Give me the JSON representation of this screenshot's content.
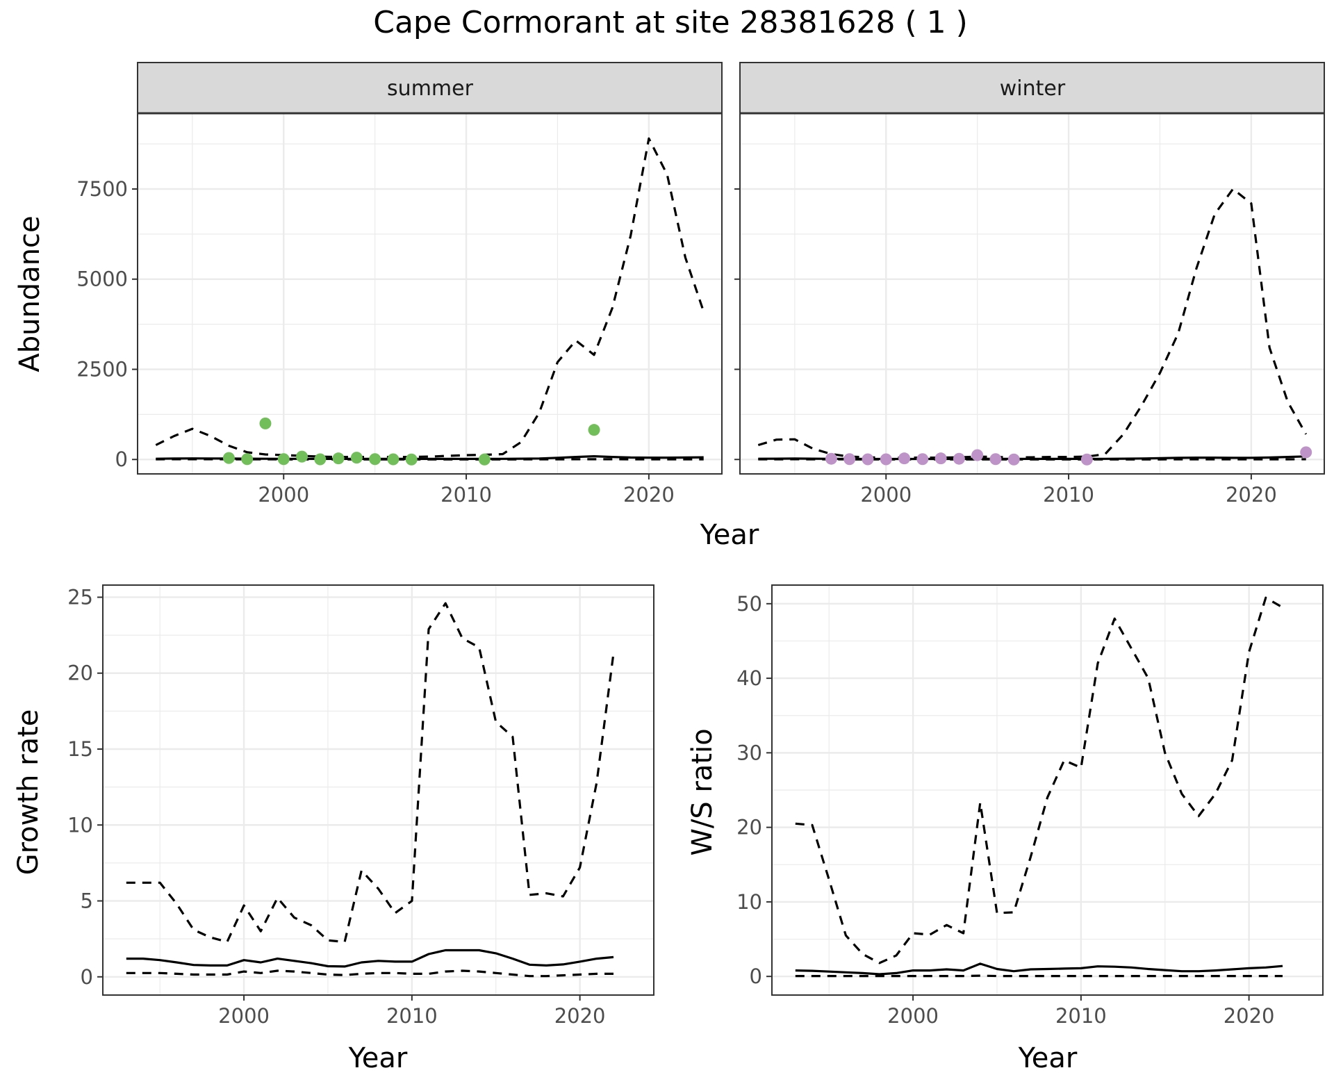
{
  "figure_title": "Cape Cormorant at site 28381628 ( 1 )",
  "colors": {
    "summer_points": "#72BE5A",
    "winter_points": "#BE94C8",
    "line": "#000000",
    "strip_fill": "#D9D9D9",
    "grid": "#EBEBEB"
  },
  "chart_data": [
    {
      "id": "summer",
      "type": "line",
      "facet_label": "summer",
      "xlabel": "Year",
      "ylabel": "Abundance",
      "xlim": [
        1992,
        2024
      ],
      "ylim": [
        -400,
        9600
      ],
      "xticks": [
        2000,
        2010,
        2020
      ],
      "yticks": [
        0,
        2500,
        5000,
        7500
      ],
      "grid": true,
      "x": [
        1993,
        1994,
        1995,
        1996,
        1997,
        1998,
        1999,
        2000,
        2001,
        2002,
        2003,
        2004,
        2005,
        2006,
        2007,
        2008,
        2009,
        2010,
        2011,
        2012,
        2013,
        2014,
        2015,
        2016,
        2017,
        2018,
        2019,
        2020,
        2021,
        2022,
        2023
      ],
      "series": [
        {
          "style": "dashed",
          "values": [
            400,
            650,
            850,
            650,
            380,
            200,
            140,
            120,
            100,
            80,
            70,
            70,
            70,
            70,
            70,
            80,
            100,
            120,
            130,
            150,
            480,
            1300,
            2700,
            3300,
            2900,
            4200,
            6200,
            8900,
            7900,
            5600,
            4100
          ]
        },
        {
          "style": "solid",
          "values": [
            20,
            25,
            30,
            28,
            25,
            22,
            20,
            18,
            18,
            17,
            17,
            16,
            16,
            16,
            16,
            16,
            16,
            16,
            16,
            18,
            22,
            28,
            45,
            70,
            90,
            70,
            55,
            50,
            50,
            55,
            60
          ]
        },
        {
          "style": "dashed",
          "values": [
            5,
            6,
            7,
            6,
            5,
            4,
            4,
            3,
            3,
            3,
            3,
            3,
            3,
            3,
            3,
            3,
            3,
            3,
            3,
            3,
            3,
            4,
            5,
            6,
            7,
            6,
            5,
            5,
            5,
            5,
            5
          ]
        }
      ],
      "points": {
        "x": [
          1997,
          1998,
          1999,
          2000,
          2001,
          2002,
          2003,
          2004,
          2005,
          2006,
          2007,
          2011,
          2017
        ],
        "y": [
          40,
          10,
          1000,
          10,
          80,
          5,
          30,
          50,
          10,
          5,
          0,
          0,
          820
        ]
      }
    },
    {
      "id": "winter",
      "type": "line",
      "facet_label": "winter",
      "xlabel": "Year",
      "ylabel": "",
      "xlim": [
        1992,
        2024
      ],
      "ylim": [
        -400,
        9600
      ],
      "xticks": [
        2000,
        2010,
        2020
      ],
      "yticks": [
        0,
        2500,
        5000,
        7500
      ],
      "grid": true,
      "x": [
        1993,
        1994,
        1995,
        1996,
        1997,
        1998,
        1999,
        2000,
        2001,
        2002,
        2003,
        2004,
        2005,
        2006,
        2007,
        2008,
        2009,
        2010,
        2011,
        2012,
        2013,
        2014,
        2015,
        2016,
        2017,
        2018,
        2019,
        2020,
        2021,
        2022,
        2023
      ],
      "series": [
        {
          "style": "dashed",
          "values": [
            400,
            550,
            560,
            300,
            150,
            80,
            60,
            50,
            50,
            50,
            50,
            60,
            80,
            70,
            60,
            60,
            70,
            70,
            80,
            150,
            700,
            1500,
            2400,
            3500,
            5300,
            6800,
            7500,
            7100,
            3100,
            1600,
            700
          ]
        },
        {
          "style": "solid",
          "values": [
            20,
            22,
            25,
            22,
            18,
            16,
            15,
            15,
            15,
            15,
            15,
            16,
            20,
            18,
            16,
            16,
            16,
            16,
            16,
            18,
            22,
            28,
            35,
            45,
            50,
            50,
            45,
            45,
            55,
            70,
            85
          ]
        },
        {
          "style": "dashed",
          "values": [
            5,
            5,
            6,
            5,
            4,
            3,
            3,
            3,
            3,
            3,
            3,
            3,
            3,
            3,
            3,
            3,
            3,
            3,
            3,
            3,
            3,
            3,
            3,
            4,
            4,
            4,
            4,
            4,
            4,
            5,
            6
          ]
        }
      ],
      "points": {
        "x": [
          1997,
          1998,
          1999,
          2000,
          2001,
          2002,
          2003,
          2004,
          2005,
          2006,
          2007,
          2011,
          2023
        ],
        "y": [
          20,
          10,
          5,
          5,
          30,
          10,
          30,
          20,
          120,
          10,
          0,
          0,
          200
        ]
      }
    },
    {
      "id": "growth",
      "type": "line",
      "xlabel": "Year",
      "ylabel": "Growth rate",
      "xlim": [
        1991.6,
        2024.4
      ],
      "ylim": [
        -1.2,
        25.8
      ],
      "xticks": [
        2000,
        2010,
        2020
      ],
      "yticks": [
        0,
        5,
        10,
        15,
        20,
        25
      ],
      "grid": true,
      "x": [
        1993,
        1994,
        1995,
        1996,
        1997,
        1998,
        1999,
        2000,
        2001,
        2002,
        2003,
        2004,
        2005,
        2006,
        2007,
        2008,
        2009,
        2010,
        2011,
        2012,
        2013,
        2014,
        2015,
        2016,
        2017,
        2018,
        2019,
        2020,
        2021,
        2022
      ],
      "series": [
        {
          "style": "dashed",
          "values": [
            6.2,
            6.2,
            6.2,
            4.8,
            3.1,
            2.6,
            2.3,
            4.7,
            3.0,
            5.2,
            3.9,
            3.4,
            2.4,
            2.3,
            7.0,
            5.8,
            4.2,
            5.0,
            22.9,
            24.6,
            22.3,
            21.7,
            16.8,
            15.8,
            5.4,
            5.5,
            5.3,
            7.2,
            12.8,
            21.3
          ]
        },
        {
          "style": "solid",
          "values": [
            1.2,
            1.2,
            1.1,
            0.95,
            0.78,
            0.75,
            0.75,
            1.1,
            0.95,
            1.2,
            1.05,
            0.9,
            0.7,
            0.68,
            0.95,
            1.05,
            1.0,
            1.0,
            1.5,
            1.75,
            1.75,
            1.75,
            1.55,
            1.2,
            0.8,
            0.75,
            0.82,
            1.0,
            1.2,
            1.3
          ]
        },
        {
          "style": "dashed",
          "values": [
            0.25,
            0.25,
            0.25,
            0.2,
            0.15,
            0.15,
            0.15,
            0.35,
            0.25,
            0.4,
            0.35,
            0.25,
            0.15,
            0.12,
            0.2,
            0.25,
            0.25,
            0.2,
            0.2,
            0.35,
            0.4,
            0.35,
            0.25,
            0.15,
            0.05,
            0.05,
            0.1,
            0.15,
            0.2,
            0.2
          ]
        }
      ]
    },
    {
      "id": "ws_ratio",
      "type": "line",
      "xlabel": "Year",
      "ylabel": "W/S ratio",
      "xlim": [
        1991.6,
        2024.4
      ],
      "ylim": [
        -2.5,
        52.5
      ],
      "xticks": [
        2000,
        2010,
        2020
      ],
      "yticks": [
        0,
        10,
        20,
        30,
        40,
        50
      ],
      "grid": true,
      "x": [
        1993,
        1994,
        1995,
        1996,
        1997,
        1998,
        1999,
        2000,
        2001,
        2002,
        2003,
        2004,
        2005,
        2006,
        2007,
        2008,
        2009,
        2010,
        2011,
        2012,
        2013,
        2014,
        2015,
        2016,
        2017,
        2018,
        2019,
        2020,
        2021,
        2022
      ],
      "series": [
        {
          "style": "dashed",
          "values": [
            20.5,
            20.3,
            13.0,
            5.5,
            3.0,
            1.8,
            2.8,
            5.8,
            5.6,
            6.9,
            5.8,
            23.3,
            8.5,
            8.6,
            16.0,
            24.0,
            29.0,
            28.0,
            42.0,
            48.0,
            44.0,
            40.0,
            30.0,
            24.5,
            21.5,
            24.5,
            29.0,
            43.5,
            50.8,
            49.5
          ]
        },
        {
          "style": "solid",
          "values": [
            0.8,
            0.75,
            0.65,
            0.55,
            0.45,
            0.3,
            0.45,
            0.8,
            0.8,
            0.95,
            0.8,
            1.7,
            1.0,
            0.7,
            0.95,
            1.0,
            1.05,
            1.1,
            1.35,
            1.3,
            1.2,
            1.0,
            0.85,
            0.7,
            0.7,
            0.8,
            0.95,
            1.1,
            1.2,
            1.4
          ]
        },
        {
          "style": "dashed",
          "values": [
            0.05,
            0.05,
            0.05,
            0.05,
            0.05,
            0.05,
            0.05,
            0.05,
            0.05,
            0.05,
            0.05,
            0.1,
            0.05,
            0.05,
            0.05,
            0.05,
            0.05,
            0.05,
            0.05,
            0.05,
            0.05,
            0.05,
            0.05,
            0.05,
            0.05,
            0.05,
            0.05,
            0.05,
            0.05,
            0.05
          ]
        }
      ]
    }
  ]
}
